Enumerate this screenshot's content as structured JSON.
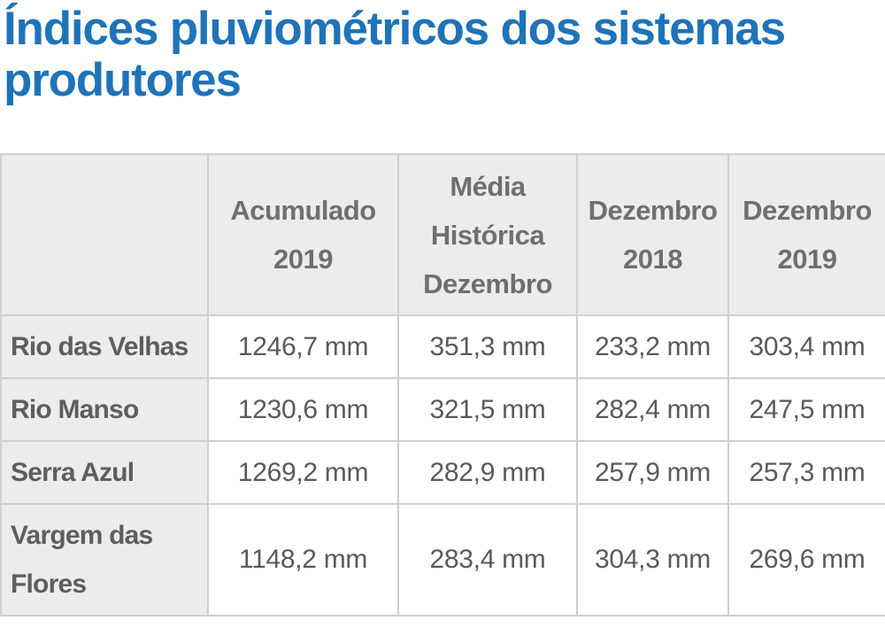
{
  "title": "Índices pluviométricos dos sistemas produtores",
  "table": {
    "headers": [
      {
        "lines": []
      },
      {
        "lines": [
          "Acumulado",
          "2019"
        ]
      },
      {
        "lines": [
          "Média",
          "Histórica",
          "Dezembro"
        ]
      },
      {
        "lines": [
          "Dezembro",
          "2018"
        ]
      },
      {
        "lines": [
          "Dezembro",
          "2019"
        ]
      }
    ],
    "rows": [
      {
        "label": "Rio das Velhas",
        "values": [
          "1246,7 mm",
          "351,3 mm",
          "233,2 mm",
          "303,4 mm"
        ]
      },
      {
        "label": "Rio Manso",
        "values": [
          "1230,6 mm",
          "321,5 mm",
          "282,4 mm",
          "247,5 mm"
        ]
      },
      {
        "label": "Serra Azul",
        "values": [
          "1269,2 mm",
          "282,9 mm",
          "257,9 mm",
          "257,3 mm"
        ]
      },
      {
        "label": "Vargem das Flores",
        "values": [
          "1148,2 mm",
          "283,4 mm",
          "304,3 mm",
          "269,6 mm"
        ]
      }
    ]
  }
}
